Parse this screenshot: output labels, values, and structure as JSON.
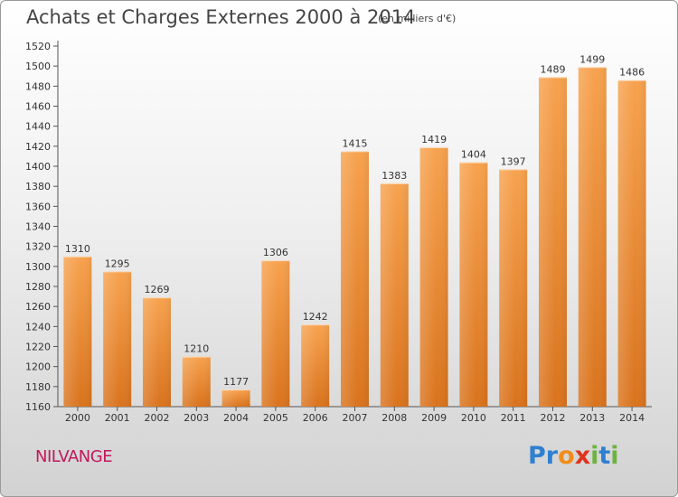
{
  "header": {
    "title": "Achats et Charges Externes 2000 à 2014",
    "subtitle": "(en milliers d'€)"
  },
  "footer": {
    "town": "NILVANGE",
    "logo_letters": [
      "P",
      "r",
      "o",
      "x",
      "i",
      "t",
      "i"
    ]
  },
  "colors": {
    "bar_light": "#f7a24e",
    "bar_dark": "#d9731d",
    "town": "#c2185b",
    "logo": [
      "#2f7fd1",
      "#2f7fd1",
      "#f28c1a",
      "#e0321c",
      "#6db33f",
      "#2f7fd1",
      "#6db33f"
    ]
  },
  "chart_data": {
    "type": "bar",
    "title": "Achats et Charges Externes 2000 à 2014",
    "subtitle": "(en milliers d'€)",
    "categories": [
      "2000",
      "2001",
      "2002",
      "2003",
      "2004",
      "2005",
      "2006",
      "2007",
      "2008",
      "2009",
      "2010",
      "2011",
      "2012",
      "2013",
      "2014"
    ],
    "values": [
      1310,
      1295,
      1269,
      1210,
      1177,
      1306,
      1242,
      1415,
      1383,
      1419,
      1404,
      1397,
      1489,
      1499,
      1486
    ],
    "ylim": [
      1160,
      1520
    ],
    "yticks": [
      1160,
      1180,
      1200,
      1220,
      1240,
      1260,
      1280,
      1300,
      1320,
      1340,
      1360,
      1380,
      1400,
      1420,
      1440,
      1460,
      1480,
      1500,
      1520
    ],
    "grid": false,
    "data_labels": true
  }
}
